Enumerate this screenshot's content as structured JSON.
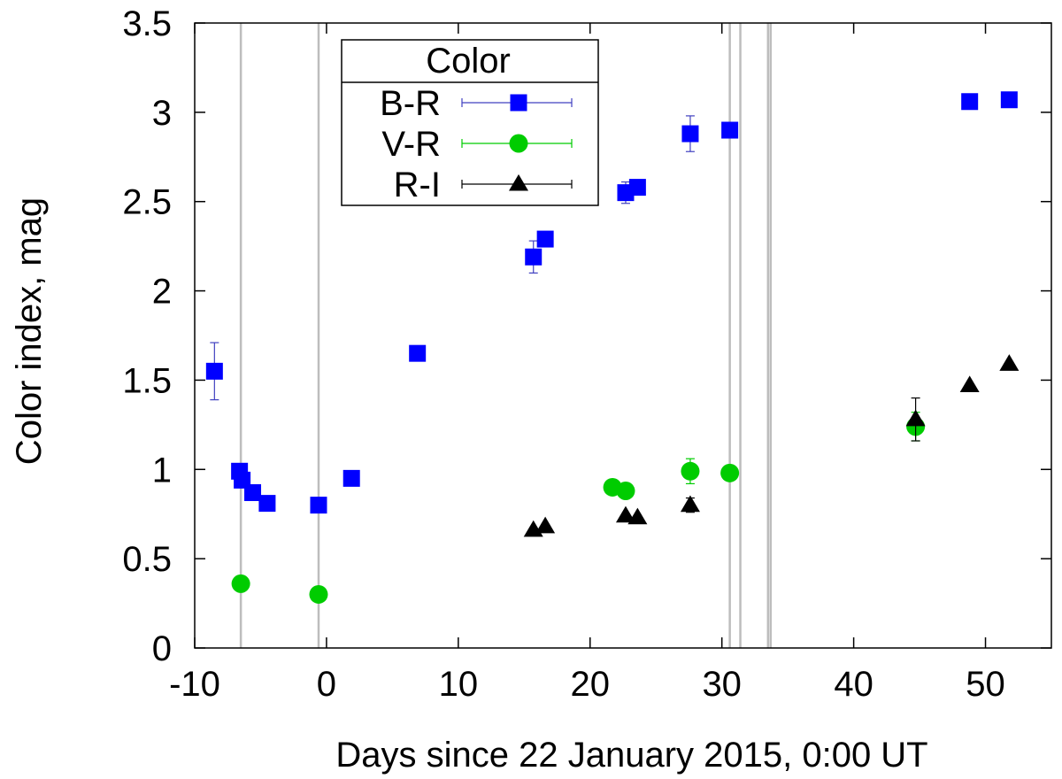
{
  "chart_data": {
    "type": "scatter",
    "xlabel": "Days since 22 January 2015, 0:00 UT",
    "ylabel": "Color index, mag",
    "xlim": [
      -10,
      55
    ],
    "ylim": [
      0,
      3.5
    ],
    "x_ticks": [
      -10,
      0,
      10,
      20,
      30,
      40,
      50
    ],
    "x_tick_labels": [
      "-10",
      "0",
      "10",
      "20",
      "30",
      "40",
      "50"
    ],
    "y_ticks": [
      0,
      0.5,
      1,
      1.5,
      2,
      2.5,
      3,
      3.5
    ],
    "y_tick_labels": [
      "0",
      "0.5",
      "1",
      "1.5",
      "2",
      "2.5",
      "3",
      "3.5"
    ],
    "grid": false,
    "vertical_lines": [
      -6.5,
      -0.6,
      30.6,
      31.4,
      33.5,
      33.7
    ],
    "legend": {
      "title": "Color",
      "position": "top-left"
    },
    "series": [
      {
        "name": "B-R",
        "marker": "square",
        "color": "#0000ff",
        "errorbar_color": "#4040c0",
        "points": [
          {
            "x": -8.5,
            "y": 1.55,
            "err": 0.16
          },
          {
            "x": -6.6,
            "y": 0.99,
            "err": 0
          },
          {
            "x": -6.4,
            "y": 0.94,
            "err": 0
          },
          {
            "x": -5.6,
            "y": 0.87,
            "err": 0
          },
          {
            "x": -4.5,
            "y": 0.81,
            "err": 0
          },
          {
            "x": -0.6,
            "y": 0.8,
            "err": 0
          },
          {
            "x": 1.9,
            "y": 0.95,
            "err": 0
          },
          {
            "x": 6.9,
            "y": 1.65,
            "err": 0
          },
          {
            "x": 15.7,
            "y": 2.19,
            "err": 0.09
          },
          {
            "x": 16.6,
            "y": 2.29,
            "err": 0
          },
          {
            "x": 22.7,
            "y": 2.55,
            "err": 0.06
          },
          {
            "x": 23.6,
            "y": 2.58,
            "err": 0
          },
          {
            "x": 27.6,
            "y": 2.88,
            "err": 0.1
          },
          {
            "x": 30.6,
            "y": 2.9,
            "err": 0
          },
          {
            "x": 48.8,
            "y": 3.06,
            "err": 0.04
          },
          {
            "x": 51.8,
            "y": 3.07,
            "err": 0
          }
        ]
      },
      {
        "name": "V-R",
        "marker": "circle",
        "color": "#00cc00",
        "errorbar_color": "#00cc00",
        "points": [
          {
            "x": -6.5,
            "y": 0.36,
            "err": 0
          },
          {
            "x": -0.6,
            "y": 0.3,
            "err": 0
          },
          {
            "x": 21.7,
            "y": 0.9,
            "err": 0
          },
          {
            "x": 22.7,
            "y": 0.88,
            "err": 0
          },
          {
            "x": 27.6,
            "y": 0.99,
            "err": 0.07
          },
          {
            "x": 30.6,
            "y": 0.98,
            "err": 0
          },
          {
            "x": 44.7,
            "y": 1.24,
            "err": 0.08
          }
        ]
      },
      {
        "name": "R-I",
        "marker": "triangle",
        "color": "#000000",
        "errorbar_color": "#000000",
        "points": [
          {
            "x": 15.7,
            "y": 0.66,
            "err": 0
          },
          {
            "x": 16.6,
            "y": 0.68,
            "err": 0
          },
          {
            "x": 22.7,
            "y": 0.74,
            "err": 0
          },
          {
            "x": 23.6,
            "y": 0.73,
            "err": 0
          },
          {
            "x": 27.6,
            "y": 0.8,
            "err": 0.04
          },
          {
            "x": 44.7,
            "y": 1.28,
            "err": 0.12
          },
          {
            "x": 48.8,
            "y": 1.47,
            "err": 0
          },
          {
            "x": 51.8,
            "y": 1.59,
            "err": 0
          }
        ]
      }
    ]
  }
}
